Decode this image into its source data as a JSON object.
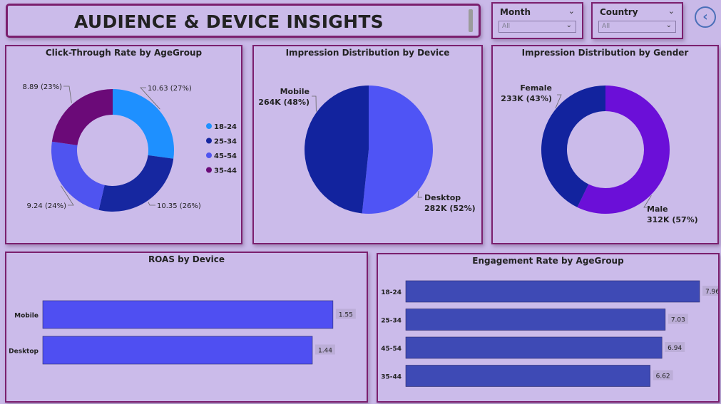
{
  "header": {
    "title": "AUDIENCE & DEVICE INSIGHTS"
  },
  "slicers": {
    "month": {
      "label": "Month",
      "value": "All"
    },
    "country": {
      "label": "Country",
      "value": "All"
    }
  },
  "nav": {
    "back_icon": "chevron-left-icon"
  },
  "colors": {
    "background": "#c9b9e8",
    "border": "#7b1f6e",
    "age_18_24": "#1e90ff",
    "age_25_34": "#1627a0",
    "age_45_54": "#4f54f0",
    "age_35_44": "#6b0a78",
    "mobile": "#12239e",
    "desktop": "#4f54f5",
    "female": "#12239e",
    "male": "#6b0fd8",
    "roas_bar": "#4f4ff2",
    "engagement_bar": "#3e4ab5"
  },
  "chart_data": [
    {
      "type": "pie",
      "subtype": "donut",
      "title": "Click-Through Rate by AgeGroup",
      "categories": [
        "18-24",
        "25-34",
        "45-54",
        "35-44"
      ],
      "values": [
        10.63,
        10.35,
        9.24,
        8.89
      ],
      "labels": [
        "10.63 (27%)",
        "10.35 (26%)",
        "9.24 (24%)",
        "8.89 (23%)"
      ],
      "legend": [
        "18-24",
        "25-34",
        "45-54",
        "35-44"
      ],
      "legend_position": "right"
    },
    {
      "type": "pie",
      "title": "Impression Distribution by Device",
      "categories": [
        "Desktop",
        "Mobile"
      ],
      "values": [
        282,
        264
      ],
      "labels": [
        [
          "Desktop",
          "282K (52%)"
        ],
        [
          "Mobile",
          "264K (48%)"
        ]
      ]
    },
    {
      "type": "pie",
      "subtype": "donut",
      "title": "Impression Distribution by Gender",
      "categories": [
        "Male",
        "Female"
      ],
      "values": [
        312,
        233
      ],
      "labels": [
        [
          "Male",
          "312K (57%)"
        ],
        [
          "Female",
          "233K (43%)"
        ]
      ]
    },
    {
      "type": "bar",
      "orientation": "horizontal",
      "title": "ROAS by Device",
      "categories": [
        "Mobile",
        "Desktop"
      ],
      "values": [
        1.55,
        1.44
      ],
      "value_labels": [
        "1.55",
        "1.44"
      ],
      "xlim": [
        0,
        1.6
      ]
    },
    {
      "type": "bar",
      "orientation": "horizontal",
      "title": "Engagement Rate by AgeGroup",
      "categories": [
        "18-24",
        "25-34",
        "45-54",
        "35-44"
      ],
      "values": [
        7.96,
        7.03,
        6.94,
        6.62
      ],
      "value_labels": [
        "7.96",
        "7.03",
        "6.94",
        "6.62"
      ],
      "xlim": [
        0,
        7.96
      ]
    }
  ]
}
